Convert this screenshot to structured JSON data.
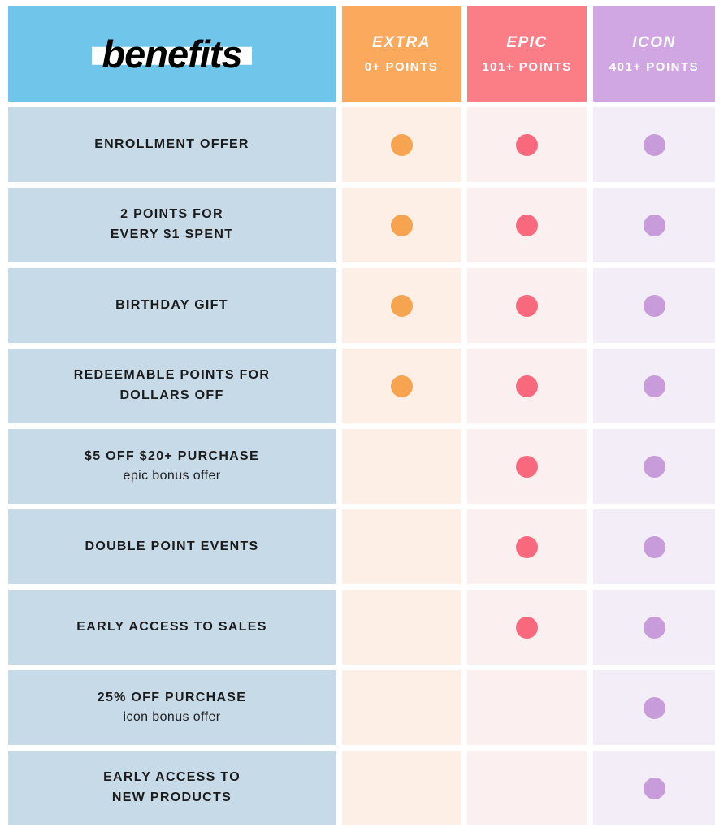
{
  "logo": {
    "text": "benefits"
  },
  "tiers": [
    {
      "name": "EXTRA",
      "points": "0+ POINTS"
    },
    {
      "name": "EPIC",
      "points": "101+ POINTS"
    },
    {
      "name": "ICON",
      "points": "401+ POINTS"
    }
  ],
  "rows": [
    {
      "line1": "ENROLLMENT OFFER",
      "line2": "",
      "sub": "",
      "tiers": {
        "extra": true,
        "epic": true,
        "icon": true
      }
    },
    {
      "line1": "2 POINTS FOR",
      "line2": "EVERY $1 SPENT",
      "sub": "",
      "tiers": {
        "extra": true,
        "epic": true,
        "icon": true
      }
    },
    {
      "line1": "BIRTHDAY GIFT",
      "line2": "",
      "sub": "",
      "tiers": {
        "extra": true,
        "epic": true,
        "icon": true
      }
    },
    {
      "line1": "REDEEMABLE POINTS FOR",
      "line2": "DOLLARS OFF",
      "sub": "",
      "tiers": {
        "extra": true,
        "epic": true,
        "icon": true
      }
    },
    {
      "line1": "$5 OFF $20+ PURCHASE",
      "line2": "",
      "sub": "epic bonus offer",
      "tiers": {
        "extra": false,
        "epic": true,
        "icon": true
      }
    },
    {
      "line1": "DOUBLE POINT EVENTS",
      "line2": "",
      "sub": "",
      "tiers": {
        "extra": false,
        "epic": true,
        "icon": true
      }
    },
    {
      "line1": "EARLY ACCESS TO SALES",
      "line2": "",
      "sub": "",
      "tiers": {
        "extra": false,
        "epic": true,
        "icon": true
      }
    },
    {
      "line1": "25% OFF PURCHASE",
      "line2": "",
      "sub": "icon bonus offer",
      "tiers": {
        "extra": false,
        "epic": false,
        "icon": true
      }
    },
    {
      "line1": "EARLY ACCESS TO",
      "line2": "NEW PRODUCTS",
      "sub": "",
      "tiers": {
        "extra": false,
        "epic": false,
        "icon": true
      }
    }
  ],
  "colors": {
    "header_blue": "#70C5EA",
    "header_orange": "#FBA95D",
    "header_pink": "#FB7E87",
    "header_purple": "#D0A7E2",
    "label_bg": "#C7DAE8",
    "extra_bg": "#FDEFE6",
    "epic_bg": "#FBEFEF",
    "icon_bg": "#F2EDF7",
    "dot_orange": "#F6A44F",
    "dot_pink": "#F8697D",
    "dot_purple": "#C89CDB",
    "logo_strip": "#FFFFFF",
    "logo_text": "#000000",
    "text_dark": "#1B1B1B"
  },
  "chart_data": {
    "type": "table",
    "title": "benefits",
    "columns": [
      "EXTRA 0+ POINTS",
      "EPIC 101+ POINTS",
      "ICON 401+ POINTS"
    ],
    "row_header": "benefits",
    "rows": [
      {
        "benefit": "ENROLLMENT OFFER",
        "extra": true,
        "epic": true,
        "icon": true
      },
      {
        "benefit": "2 POINTS FOR EVERY $1 SPENT",
        "extra": true,
        "epic": true,
        "icon": true
      },
      {
        "benefit": "BIRTHDAY GIFT",
        "extra": true,
        "epic": true,
        "icon": true
      },
      {
        "benefit": "REDEEMABLE POINTS FOR DOLLARS OFF",
        "extra": true,
        "epic": true,
        "icon": true
      },
      {
        "benefit": "$5 OFF $20+ PURCHASE (epic bonus offer)",
        "extra": false,
        "epic": true,
        "icon": true
      },
      {
        "benefit": "DOUBLE POINT EVENTS",
        "extra": false,
        "epic": true,
        "icon": true
      },
      {
        "benefit": "EARLY ACCESS TO SALES",
        "extra": false,
        "epic": true,
        "icon": true
      },
      {
        "benefit": "25% OFF PURCHASE (icon bonus offer)",
        "extra": false,
        "epic": false,
        "icon": true
      },
      {
        "benefit": "EARLY ACCESS TO NEW PRODUCTS",
        "extra": false,
        "epic": false,
        "icon": true
      }
    ]
  }
}
